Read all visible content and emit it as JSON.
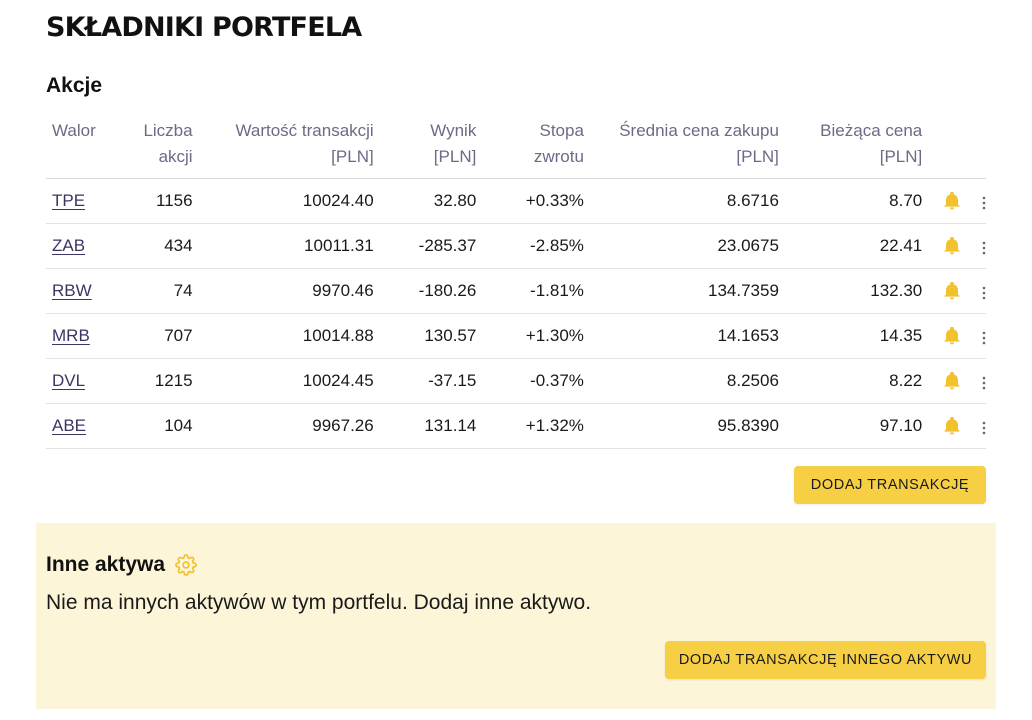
{
  "page_title": "SKŁADNIKI PORTFELA",
  "stocks": {
    "title": "Akcje",
    "headers": {
      "name": "Walor",
      "shares": [
        "Liczba",
        "akcji"
      ],
      "value": [
        "Wartość transakcji",
        "[PLN]"
      ],
      "result": [
        "Wynik",
        "[PLN]"
      ],
      "return": [
        "Stopa",
        "zwrotu"
      ],
      "avg_price": [
        "Średnia cena zakupu",
        "[PLN]"
      ],
      "current_price": [
        "Bieżąca cena",
        "[PLN]"
      ]
    },
    "rows": [
      {
        "ticker": "TPE",
        "shares": "1156",
        "value": "10024.40",
        "result": "32.80",
        "return": "+0.33%",
        "avg_price": "8.6716",
        "current_price": "8.70"
      },
      {
        "ticker": "ZAB",
        "shares": "434",
        "value": "10011.31",
        "result": "-285.37",
        "return": "-2.85%",
        "avg_price": "23.0675",
        "current_price": "22.41"
      },
      {
        "ticker": "RBW",
        "shares": "74",
        "value": "9970.46",
        "result": "-180.26",
        "return": "-1.81%",
        "avg_price": "134.7359",
        "current_price": "132.30"
      },
      {
        "ticker": "MRB",
        "shares": "707",
        "value": "10014.88",
        "result": "130.57",
        "return": "+1.30%",
        "avg_price": "14.1653",
        "current_price": "14.35"
      },
      {
        "ticker": "DVL",
        "shares": "1215",
        "value": "10024.45",
        "result": "-37.15",
        "return": "-0.37%",
        "avg_price": "8.2506",
        "current_price": "8.22"
      },
      {
        "ticker": "ABE",
        "shares": "104",
        "value": "9967.26",
        "result": "131.14",
        "return": "+1.32%",
        "avg_price": "95.8390",
        "current_price": "97.10"
      }
    ],
    "add_button": "DODAJ TRANSAKCJĘ"
  },
  "other_assets": {
    "title": "Inne aktywa",
    "message": "Nie ma innych aktywów w tym portfelu. Dodaj inne aktywo.",
    "add_button": "DODAJ TRANSAKCJĘ INNEGO AKTYWU"
  },
  "icons": {
    "bell": "bell-icon",
    "menu": "vertical-dots-icon",
    "settings": "gear-icon"
  },
  "colors": {
    "accent": "#f6cf45",
    "panel_bg": "#fdf5d8",
    "positive": "#4caf6a",
    "negative": "#e05858",
    "header_text": "#6d6a86"
  }
}
